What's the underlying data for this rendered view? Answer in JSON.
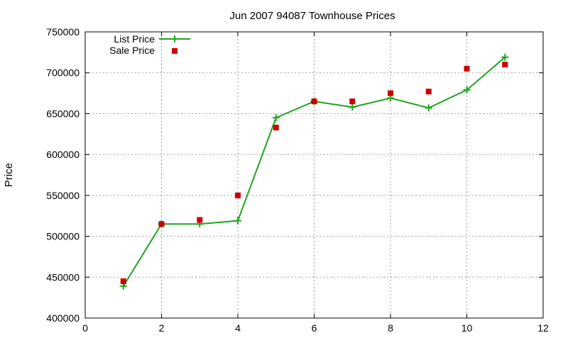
{
  "chart_data": {
    "type": "line",
    "title": "Jun 2007 94087 Townhouse Prices",
    "xlabel": "",
    "ylabel": "Price",
    "xlim": [
      0,
      12
    ],
    "ylim": [
      400000,
      750000
    ],
    "x_ticks": [
      0,
      2,
      4,
      6,
      8,
      10,
      12
    ],
    "y_ticks": [
      400000,
      450000,
      500000,
      550000,
      600000,
      650000,
      700000,
      750000
    ],
    "grid": true,
    "legend_position": "top-left",
    "series": [
      {
        "name": "List Price",
        "style": "line-with-plus-markers",
        "color": "#1ea51e",
        "x": [
          1,
          2,
          3,
          4,
          5,
          6,
          7,
          8,
          9,
          10,
          11
        ],
        "values": [
          439000,
          515000,
          515000,
          519000,
          645000,
          665000,
          658000,
          669000,
          657000,
          679000,
          719000
        ]
      },
      {
        "name": "Sale Price",
        "style": "square-points",
        "color": "#cc0000",
        "x": [
          1,
          2,
          3,
          4,
          5,
          6,
          7,
          8,
          9,
          10,
          11
        ],
        "values": [
          445000,
          515000,
          520000,
          550000,
          633000,
          665000,
          665000,
          675000,
          677000,
          705000,
          710000
        ]
      }
    ]
  }
}
